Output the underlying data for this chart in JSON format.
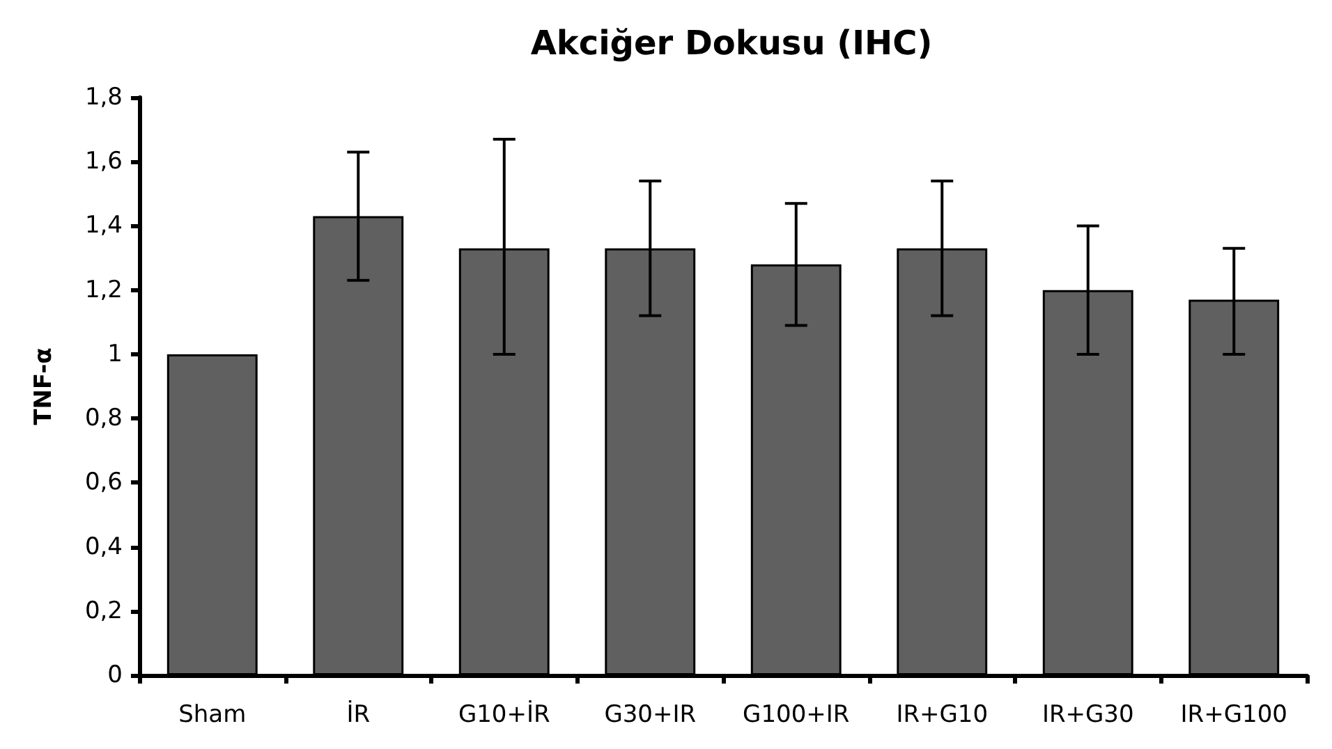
{
  "chart_data": {
    "type": "bar",
    "title": "Akciğer Dokusu (IHC)",
    "ylabel": "TNF-α",
    "categories": [
      "Sham",
      "İR",
      "G10+İR",
      "G30+IR",
      "G100+IR",
      "IR+G10",
      "IR+G30",
      "IR+G100"
    ],
    "series": [
      {
        "color": "#606060",
        "values": [
          1.0,
          1.43,
          1.33,
          1.33,
          1.28,
          1.33,
          1.2,
          1.17
        ],
        "errors": [
          null,
          0.2,
          [
            1.0,
            1.67
          ],
          0.21,
          0.19,
          0.21,
          0.2,
          [
            1.0,
            1.33
          ]
        ]
      }
    ],
    "ylim": [
      0,
      1.8
    ],
    "yticks": [
      {
        "value": 0,
        "label": "0"
      },
      {
        "value": 0.2,
        "label": "0,2"
      },
      {
        "value": 0.4,
        "label": "0,4"
      },
      {
        "value": 0.6,
        "label": "0,6"
      },
      {
        "value": 0.8,
        "label": "0,8"
      },
      {
        "value": 1,
        "label": "1"
      },
      {
        "value": 1.2,
        "label": "1,2"
      },
      {
        "value": 1.4,
        "label": "1,4"
      },
      {
        "value": 1.6,
        "label": "1,6"
      },
      {
        "value": 1.8,
        "label": "1,8"
      }
    ],
    "grid": false
  }
}
